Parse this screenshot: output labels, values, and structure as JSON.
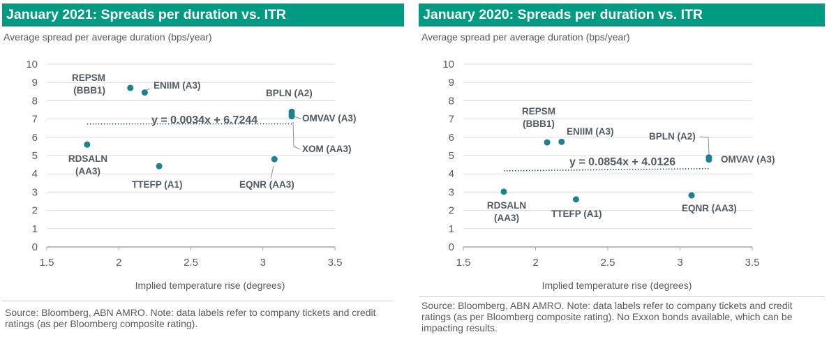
{
  "chart_data": [
    {
      "type": "scatter",
      "title": "January 2021: Spreads per duration vs. ITR",
      "ylabel": "Average spread per average duration (bps/year)",
      "xlabel": "Implied temperature rise (degrees)",
      "xlim": [
        1.5,
        3.5
      ],
      "ylim": [
        0,
        10
      ],
      "xticks": [
        "1.5",
        "2",
        "2.5",
        "3",
        "3.5"
      ],
      "yticks": [
        "0",
        "1",
        "2",
        "3",
        "4",
        "5",
        "6",
        "7",
        "8",
        "9",
        "10"
      ],
      "grid": "horizontal",
      "marker_color": "#1f7f8c",
      "points": [
        {
          "label": "REPSM (BBB1)",
          "x": 2.08,
          "y": 8.7
        },
        {
          "label": "ENIIM (A3)",
          "x": 2.18,
          "y": 8.45
        },
        {
          "label": "BPLN (A2)",
          "x": 3.2,
          "y": 7.4
        },
        {
          "label": "OMVAV (A3)",
          "x": 3.2,
          "y": 7.25
        },
        {
          "label": "XOM (AA3)",
          "x": 3.2,
          "y": 7.15
        },
        {
          "label": "RDSALN (AA3)",
          "x": 1.78,
          "y": 5.6
        },
        {
          "label": "EQNR (AA3)",
          "x": 3.08,
          "y": 4.8
        },
        {
          "label": "TTEFP (A1)",
          "x": 2.28,
          "y": 4.42
        }
      ],
      "trendline": {
        "label": "y = 0.0034x + 6.7244",
        "x": [
          1.78,
          3.2
        ],
        "slope": 0.0034,
        "intercept": 6.7244
      },
      "source": "Source: Bloomberg, ABN AMRO. Note: data labels refer to company tickets and credit ratings (as per Bloomberg composite rating)."
    },
    {
      "type": "scatter",
      "title": "January 2020: Spreads per duration vs. ITR",
      "ylabel": "Average spread per average duration (bps/year)",
      "xlabel": "Implied temperature rise (degrees)",
      "xlim": [
        1.5,
        3.5
      ],
      "ylim": [
        0,
        10
      ],
      "xticks": [
        "1.5",
        "2",
        "2.5",
        "3",
        "3.5"
      ],
      "yticks": [
        "0",
        "1",
        "2",
        "3",
        "4",
        "5",
        "6",
        "7",
        "8",
        "9",
        "10"
      ],
      "grid": "horizontal",
      "marker_color": "#1f7f8c",
      "points": [
        {
          "label": "REPSM (BBB1)",
          "x": 2.08,
          "y": 5.72
        },
        {
          "label": "ENIIM (A3)",
          "x": 2.18,
          "y": 5.75
        },
        {
          "label": "BPLN (A2)",
          "x": 3.2,
          "y": 4.9
        },
        {
          "label": "OMVAV (A3)",
          "x": 3.2,
          "y": 4.78
        },
        {
          "label": "RDSALN (AA3)",
          "x": 1.78,
          "y": 3.02
        },
        {
          "label": "EQNR (AA3)",
          "x": 3.08,
          "y": 2.82
        },
        {
          "label": "TTEFP (A1)",
          "x": 2.28,
          "y": 2.6
        }
      ],
      "trendline": {
        "label": "y = 0.0854x + 4.0126",
        "x": [
          1.78,
          3.2
        ],
        "slope": 0.0854,
        "intercept": 4.0126
      },
      "source": "Source: Bloomberg, ABN AMRO. Note: data labels refer to company tickets and credit ratings (as per Bloomberg composite rating). No Exxon bonds available, which can be impacting results."
    }
  ]
}
